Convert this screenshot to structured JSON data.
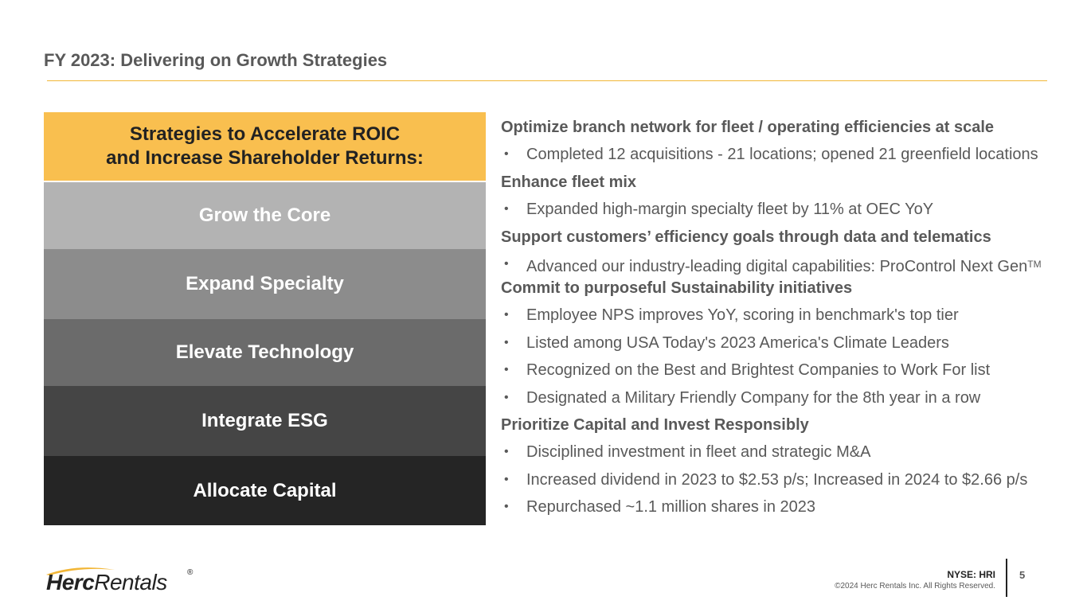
{
  "page": {
    "title": "FY 2023: Delivering on Growth Strategies",
    "accent_color": "#f2b636"
  },
  "strategies": {
    "header_line1": "Strategies to Accelerate ROIC",
    "header_line2": "and Increase Shareholder Returns:",
    "header_color": "#f9bf4f",
    "items": [
      {
        "label": "Grow the Core",
        "color": "#b3b3b3"
      },
      {
        "label": "Expand Specialty",
        "color": "#8c8c8c"
      },
      {
        "label": "Elevate Technology",
        "color": "#6b6b6b"
      },
      {
        "label": "Integrate ESG",
        "color": "#454545"
      },
      {
        "label": "Allocate Capital",
        "color": "#252525"
      }
    ]
  },
  "sections": [
    {
      "heading": "Optimize branch network for fleet / operating efficiencies at scale",
      "bullets": [
        "Completed 12 acquisitions - 21 locations; opened 21 greenfield locations"
      ]
    },
    {
      "heading": "Enhance fleet mix",
      "bullets": [
        "Expanded high-margin specialty fleet by 11% at OEC YoY"
      ]
    },
    {
      "heading": "Support customers’ efficiency goals through data and telematics",
      "bullets": [
        "Advanced our industry-leading digital capabilities: ProControl Next Gen"
      ],
      "trademark": "TM"
    },
    {
      "heading": "Commit to purposeful Sustainability initiatives",
      "bullets": [
        "Employee NPS improves YoY, scoring in benchmark's top tier",
        "Listed among USA Today's 2023 America's Climate Leaders",
        "Recognized on the Best and Brightest Companies to Work For list",
        "Designated a Military Friendly Company for the 8th year in a row"
      ]
    },
    {
      "heading": "Prioritize Capital and Invest Responsibly",
      "bullets": [
        "Disciplined investment in fleet and strategic M&A",
        "Increased dividend in 2023 to $2.53 p/s; Increased in 2024 to $2.66 p/s",
        "Repurchased ~1.1 million shares in 2023"
      ]
    }
  ],
  "footer": {
    "logo_herc": "Herc",
    "logo_rentals": "Rentals",
    "logo_reg": "®",
    "ticker": "NYSE: HRI",
    "copyright": "©2024 Herc Rentals Inc.  All Rights Reserved.",
    "page_number": "5"
  }
}
